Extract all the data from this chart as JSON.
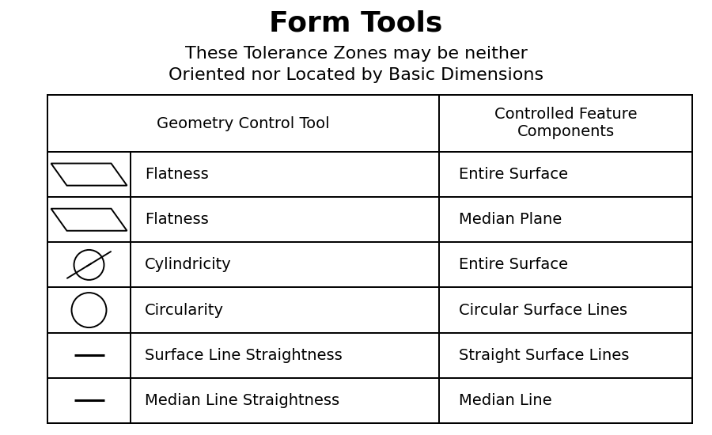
{
  "title": "Form Tools",
  "subtitle_line1": "These Tolerance Zones may be neither",
  "subtitle_line2": "Oriented nor Located by Basic Dimensions",
  "title_fontsize": 26,
  "subtitle_fontsize": 16,
  "header_col1": "Geometry Control Tool",
  "header_col2": "Controlled Feature\nComponents",
  "table_fontsize": 14,
  "rows": [
    {
      "symbol": "flatness",
      "label": "Flatness",
      "feature": "Entire Surface"
    },
    {
      "symbol": "flatness",
      "label": "Flatness",
      "feature": "Median Plane"
    },
    {
      "symbol": "cylindricity",
      "label": "Cylindricity",
      "feature": "Entire Surface"
    },
    {
      "symbol": "circularity",
      "label": "Circularity",
      "feature": "Circular Surface Lines"
    },
    {
      "symbol": "straightness",
      "label": "Surface Line Straightness",
      "feature": "Straight Surface Lines"
    },
    {
      "symbol": "straightness",
      "label": "Median Line Straightness",
      "feature": "Median Line"
    }
  ],
  "bg_color": "#ffffff",
  "text_color": "#000000"
}
